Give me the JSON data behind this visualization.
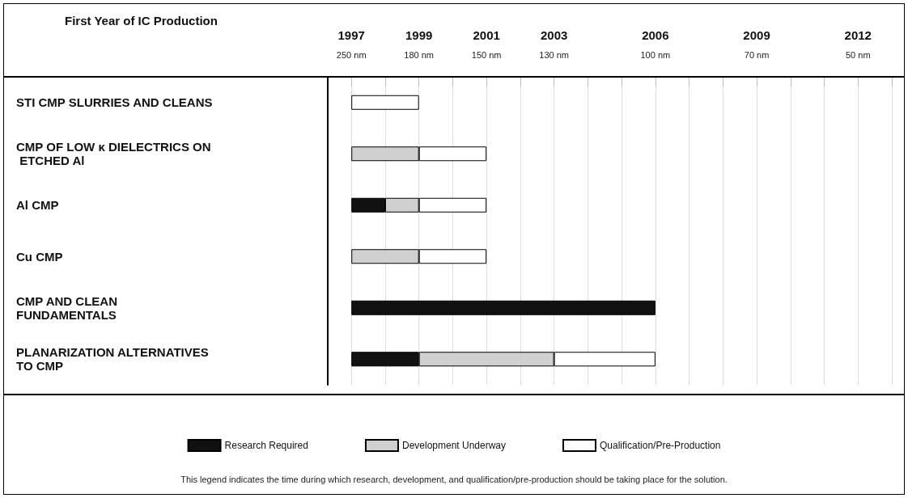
{
  "chart_data": {
    "type": "bar",
    "orientation": "horizontal",
    "xlabel": "First Year of IC Production",
    "categories": [
      "STI CMP SLURRIES AND CLEANS",
      "CMP OF LOW κ DIELECTRICS ON ETCHED Al",
      "Al CMP",
      "Cu CMP",
      "CMP AND CLEAN FUNDAMENTALS",
      "PLANARIZATION ALTERNATIVES TO CMP"
    ],
    "series": [
      {
        "name": "Research Required",
        "color": "#111111",
        "values": [
          null,
          null,
          1,
          null,
          9,
          2
        ],
        "base": [
          null,
          null,
          1997,
          null,
          1997,
          1997
        ]
      },
      {
        "name": "Development Underway",
        "color": "#d0d0d0",
        "values": [
          null,
          2,
          1,
          2,
          null,
          4
        ],
        "base": [
          null,
          1997,
          1998,
          1997,
          null,
          1999
        ]
      },
      {
        "name": "Qualification/Pre-Production",
        "color": "#ffffff",
        "values": [
          2,
          2,
          2,
          2,
          null,
          3
        ],
        "base": [
          1997,
          1999,
          1999,
          1999,
          null,
          2003
        ]
      }
    ],
    "xlim": [
      1996.3,
      2013
    ],
    "xticks": [
      1997,
      {
        "value": 1998,
        "label": null
      },
      1999,
      {
        "value": 2000,
        "label": null
      },
      2001,
      {
        "value": 2002,
        "label": null
      },
      2003,
      {
        "value": 2004,
        "label": null
      },
      {
        "value": 2005,
        "label": null
      },
      2006,
      {
        "value": 2007,
        "label": null
      },
      {
        "value": 2008,
        "label": null
      },
      2009,
      {
        "value": 2010,
        "label": null
      },
      {
        "value": 2011,
        "label": null
      },
      2012,
      {
        "value": 2013,
        "label": null
      }
    ],
    "grid": "x",
    "legend": "bottom",
    "annotations": [
      "250 nm",
      "180 nm",
      "150 nm",
      "130 nm",
      "100 nm",
      "70 nm",
      "50 nm",
      "This legend indicates the time during which research, development, and qualification/pre-production should be taking place for the solution."
    ]
  }
}
